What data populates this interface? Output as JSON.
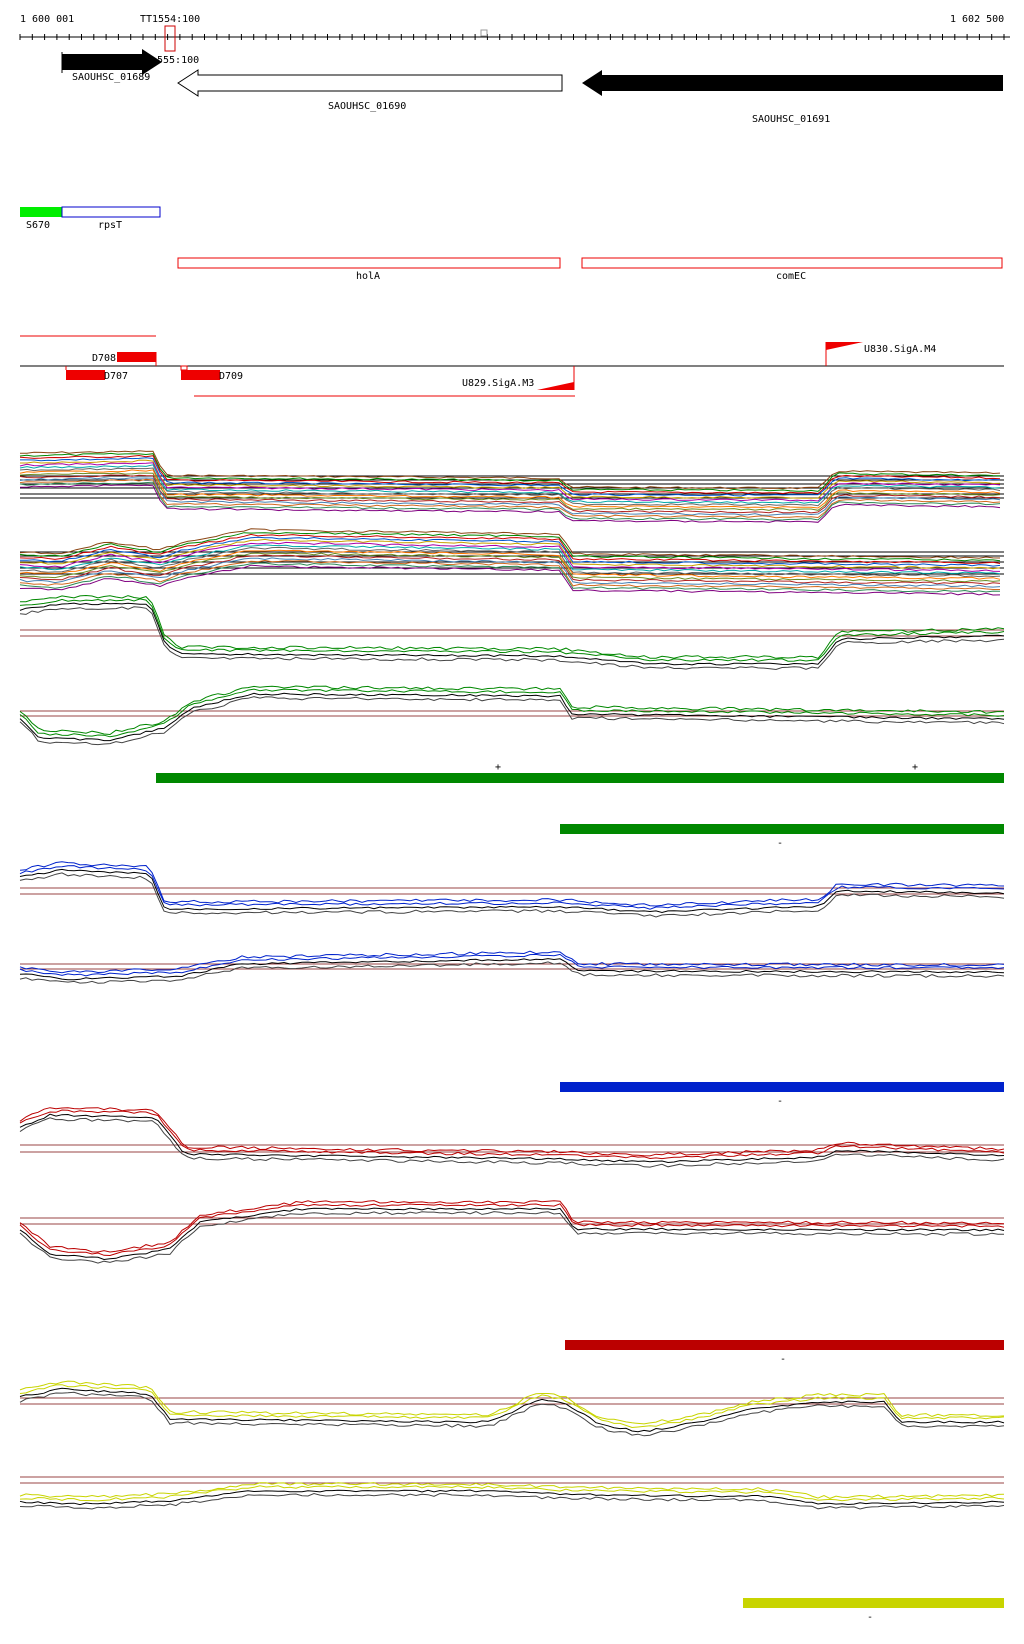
{
  "ruler": {
    "start_label": "1 600 001",
    "end_label": "1 602 500",
    "terminator_label": "TT1554:100",
    "terminator_label_2": "555:100"
  },
  "genes": [
    {
      "name": "SAOUHSC_01689",
      "style": "filled-black"
    },
    {
      "name": "SAOUHSC_01690",
      "style": "open"
    },
    {
      "name": "SAOUHSC_01691",
      "style": "filled-black"
    }
  ],
  "features": {
    "s670": "S670",
    "rpst": "rpsT",
    "hola": "holA",
    "comec": "comEC"
  },
  "peaks": {
    "d708": "D708",
    "d707": "D707",
    "d709": "D709",
    "u829": "U829.SigA.M3",
    "u830": "U830.SigA.M4"
  },
  "strand_marks": {
    "plus": "+",
    "minus": "-"
  },
  "colors": {
    "green": "#008800",
    "blue": "#0022cc",
    "red": "#bb0000",
    "yellow": "#c8d400",
    "feature_red": "#ee0000",
    "s670_green": "#00ee00",
    "brown": "#994444"
  }
}
